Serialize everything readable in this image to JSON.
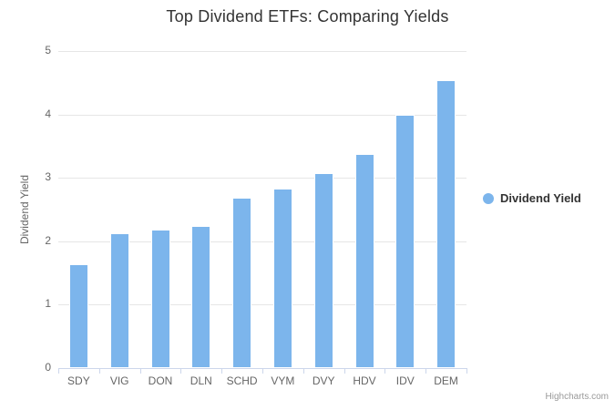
{
  "title": "Top Dividend ETFs: Comparing Yields",
  "legend": {
    "label": "Dividend Yield"
  },
  "credits": "Highcharts.com",
  "colors": {
    "bar": "#7cb5ec",
    "bar_border": "#ffffff",
    "grid": "#e6e6e6",
    "axis_line": "#ccd6eb",
    "title_text": "#333333",
    "label_text": "#666666",
    "legend_text": "#333333",
    "credits_text": "#999999",
    "background": "#ffffff"
  },
  "chart_data": {
    "type": "bar",
    "title": "Top Dividend ETFs: Comparing Yields",
    "categories": [
      "SDY",
      "VIG",
      "DON",
      "DLN",
      "SCHD",
      "VYM",
      "DVY",
      "HDV",
      "IDV",
      "DEM"
    ],
    "values": [
      1.64,
      2.12,
      2.18,
      2.24,
      2.69,
      2.83,
      3.07,
      3.38,
      4.0,
      4.54
    ],
    "series_name": "Dividend Yield",
    "xlabel": "",
    "ylabel": "Dividend Yield",
    "ylim": [
      0,
      5
    ],
    "yticks": [
      0,
      1,
      2,
      3,
      4,
      5
    ],
    "grid": true,
    "legend_position": "right-middle"
  }
}
